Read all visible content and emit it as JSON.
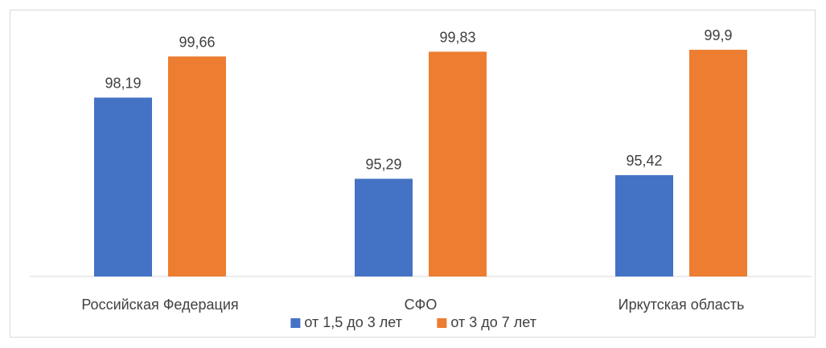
{
  "chart_data": {
    "type": "bar",
    "categories": [
      "Российская Федерация",
      "СФО",
      "Иркутская область"
    ],
    "series": [
      {
        "name": "от 1,5 до 3 лет",
        "values": [
          98.19,
          95.29,
          95.42
        ],
        "labels": [
          "98,19",
          "95,29",
          "95,42"
        ],
        "color": "#4472C4"
      },
      {
        "name": "от 3 до 7 лет",
        "values": [
          99.66,
          99.83,
          99.9
        ],
        "labels": [
          "99,66",
          "99,83",
          "99,9"
        ],
        "color": "#ED7D31"
      }
    ],
    "ylim": [
      91.8,
      100.5
    ],
    "grid": false,
    "legend_position": "bottom"
  }
}
